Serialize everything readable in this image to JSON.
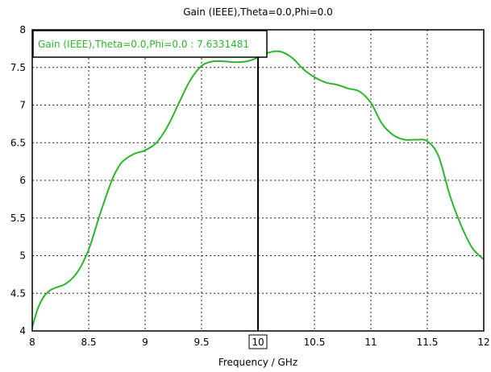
{
  "chart_data": {
    "type": "line",
    "title": "Gain (IEEE),Theta=0.0,Phi=0.0",
    "xlabel": "Frequency / GHz",
    "ylabel": "",
    "xlim": [
      8,
      12
    ],
    "ylim": [
      4,
      8
    ],
    "x_ticks": [
      "8",
      "8.5",
      "9",
      "9.5",
      "10",
      "10.5",
      "11",
      "11.5",
      "12"
    ],
    "y_ticks": [
      "4",
      "4.5",
      "5",
      "5.5",
      "6",
      "6.5",
      "7",
      "7.5",
      "8"
    ],
    "grid": true,
    "marker": {
      "x": 10,
      "x_label": "10"
    },
    "legend": {
      "position": "top-left",
      "text": "Gain (IEEE),Theta=0.0,Phi=0.0 : 7.6331481"
    },
    "colors": {
      "series": "#2db52d",
      "frame": "#000000"
    },
    "series": [
      {
        "name": "Gain (IEEE),Theta=0.0,Phi=0.0",
        "x": [
          8.0,
          8.05,
          8.1,
          8.15,
          8.2,
          8.3,
          8.4,
          8.5,
          8.6,
          8.7,
          8.75,
          8.8,
          8.9,
          9.0,
          9.1,
          9.2,
          9.3,
          9.4,
          9.5,
          9.6,
          9.7,
          9.8,
          9.9,
          10.0,
          10.1,
          10.2,
          10.3,
          10.4,
          10.5,
          10.6,
          10.7,
          10.8,
          10.9,
          11.0,
          11.1,
          11.2,
          11.3,
          11.4,
          11.5,
          11.6,
          11.7,
          11.8,
          11.9,
          12.0
        ],
        "y": [
          4.05,
          4.3,
          4.45,
          4.53,
          4.57,
          4.63,
          4.78,
          5.08,
          5.55,
          5.98,
          6.14,
          6.25,
          6.35,
          6.4,
          6.5,
          6.72,
          7.03,
          7.33,
          7.52,
          7.58,
          7.58,
          7.57,
          7.58,
          7.63,
          7.7,
          7.71,
          7.63,
          7.48,
          7.37,
          7.3,
          7.27,
          7.22,
          7.18,
          7.03,
          6.75,
          6.6,
          6.54,
          6.54,
          6.52,
          6.32,
          5.8,
          5.4,
          5.1,
          4.95
        ]
      }
    ]
  }
}
